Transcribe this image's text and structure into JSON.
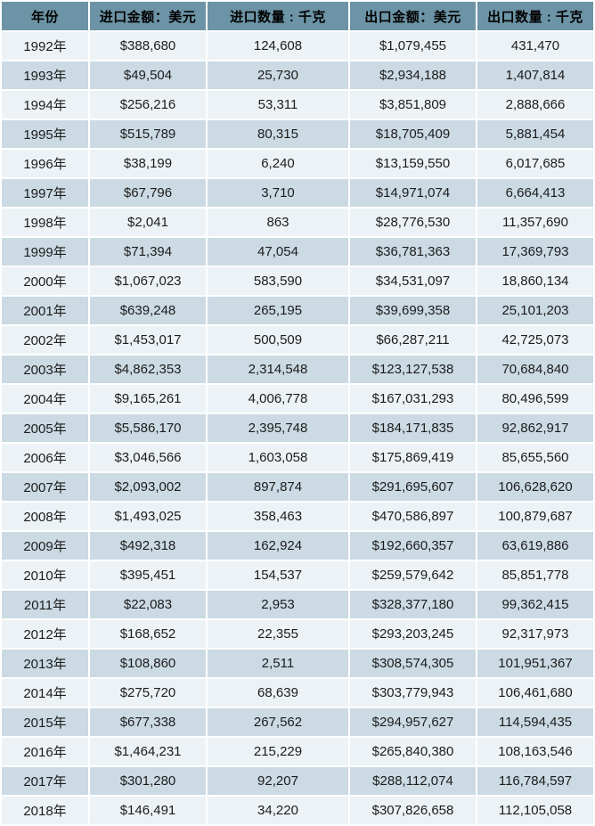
{
  "theme": {
    "header_bg": "#6C94A6",
    "header_text": "#000000",
    "row_light_bg": "#ECF2F5",
    "row_dark_bg": "#CBDAE3",
    "cell_text": "#1C1C1C",
    "gap_color": "#FFFFFF"
  },
  "chart_data": {
    "type": "table",
    "headers": [
      "年份",
      "进口金额：美元",
      "进口数量 : 千克",
      "出口金额：美元",
      "出口数量 : 千克"
    ],
    "rows": [
      [
        "1992年",
        "$388,680",
        "124,608",
        "$1,079,455",
        "431,470"
      ],
      [
        "1993年",
        "$49,504",
        "25,730",
        "$2,934,188",
        "1,407,814"
      ],
      [
        "1994年",
        "$256,216",
        "53,311",
        "$3,851,809",
        "2,888,666"
      ],
      [
        "1995年",
        "$515,789",
        "80,315",
        "$18,705,409",
        "5,881,454"
      ],
      [
        "1996年",
        "$38,199",
        "6,240",
        "$13,159,550",
        "6,017,685"
      ],
      [
        "1997年",
        "$67,796",
        "3,710",
        "$14,971,074",
        "6,664,413"
      ],
      [
        "1998年",
        "$2,041",
        "863",
        "$28,776,530",
        "11,357,690"
      ],
      [
        "1999年",
        "$71,394",
        "47,054",
        "$36,781,363",
        "17,369,793"
      ],
      [
        "2000年",
        "$1,067,023",
        "583,590",
        "$34,531,097",
        "18,860,134"
      ],
      [
        "2001年",
        "$639,248",
        "265,195",
        "$39,699,358",
        "25,101,203"
      ],
      [
        "2002年",
        "$1,453,017",
        "500,509",
        "$66,287,211",
        "42,725,073"
      ],
      [
        "2003年",
        "$4,862,353",
        "2,314,548",
        "$123,127,538",
        "70,684,840"
      ],
      [
        "2004年",
        "$9,165,261",
        "4,006,778",
        "$167,031,293",
        "80,496,599"
      ],
      [
        "2005年",
        "$5,586,170",
        "2,395,748",
        "$184,171,835",
        "92,862,917"
      ],
      [
        "2006年",
        "$3,046,566",
        "1,603,058",
        "$175,869,419",
        "85,655,560"
      ],
      [
        "2007年",
        "$2,093,002",
        "897,874",
        "$291,695,607",
        "106,628,620"
      ],
      [
        "2008年",
        "$1,493,025",
        "358,463",
        "$470,586,897",
        "100,879,687"
      ],
      [
        "2009年",
        "$492,318",
        "162,924",
        "$192,660,357",
        "63,619,886"
      ],
      [
        "2010年",
        "$395,451",
        "154,537",
        "$259,579,642",
        "85,851,778"
      ],
      [
        "2011年",
        "$22,083",
        "2,953",
        "$328,377,180",
        "99,362,415"
      ],
      [
        "2012年",
        "$168,652",
        "22,355",
        "$293,203,245",
        "92,317,973"
      ],
      [
        "2013年",
        "$108,860",
        "2,511",
        "$308,574,305",
        "101,951,367"
      ],
      [
        "2014年",
        "$275,720",
        "68,639",
        "$303,779,943",
        "106,461,680"
      ],
      [
        "2015年",
        "$677,338",
        "267,562",
        "$294,957,627",
        "114,594,435"
      ],
      [
        "2016年",
        "$1,464,231",
        "215,229",
        "$265,840,380",
        "108,163,546"
      ],
      [
        "2017年",
        "$301,280",
        "92,207",
        "$288,112,074",
        "116,784,597"
      ],
      [
        "2018年",
        "$146,491",
        "34,220",
        "$307,826,658",
        "112,105,058"
      ]
    ]
  }
}
